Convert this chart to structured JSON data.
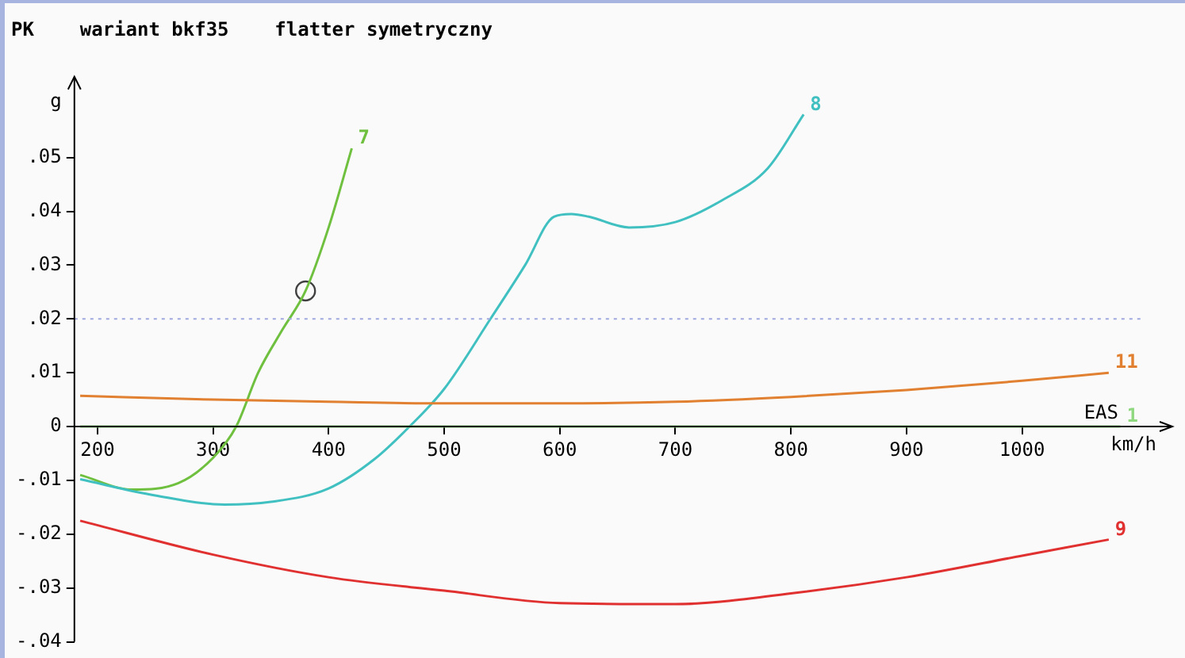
{
  "chart_data": {
    "type": "line",
    "title": "PK    wariant bkf35    flatter symetryczny",
    "xlabel": "EAS km/h",
    "ylabel": "g",
    "xlim": [
      180,
      1130
    ],
    "xticks": [
      200,
      300,
      400,
      500,
      600,
      700,
      800,
      900,
      1000
    ],
    "ylim": [
      -0.04,
      0.065
    ],
    "yticks": [
      {
        "value": -0.04,
        "label": "-.04"
      },
      {
        "value": -0.03,
        "label": "-.03"
      },
      {
        "value": -0.02,
        "label": "-.02"
      },
      {
        "value": -0.01,
        "label": "-.01"
      },
      {
        "value": 0,
        "label": "0"
      },
      {
        "value": 0.01,
        "label": ".01"
      },
      {
        "value": 0.02,
        "label": ".02"
      },
      {
        "value": 0.03,
        "label": ".03"
      },
      {
        "value": 0.04,
        "label": ".04"
      },
      {
        "value": 0.05,
        "label": ".05"
      }
    ],
    "grid": false,
    "legend": false,
    "marker": "none",
    "line_style": "solid",
    "ref_lines": [
      {
        "axis": "y",
        "value": 0.02,
        "color": "#a0a8e0",
        "line_style": "dotted"
      }
    ],
    "series": [
      {
        "name": "1",
        "color": "#90d880",
        "x": [
          185,
          1085
        ],
        "values": [
          0,
          0
        ]
      },
      {
        "name": "11",
        "color": "#e08030",
        "x": [
          185,
          300,
          400,
          500,
          600,
          700,
          800,
          900,
          1000,
          1075
        ],
        "values": [
          0.0057,
          0.005,
          0.0046,
          0.0043,
          0.0043,
          0.0046,
          0.0055,
          0.0068,
          0.0085,
          0.01
        ]
      },
      {
        "name": "9",
        "color": "#e03030",
        "x": [
          185,
          300,
          400,
          500,
          600,
          700,
          800,
          900,
          1000,
          1075
        ],
        "values": [
          -0.0175,
          -0.0238,
          -0.028,
          -0.0305,
          -0.0328,
          -0.033,
          -0.031,
          -0.028,
          -0.024,
          -0.021
        ]
      },
      {
        "name": "8",
        "color": "#40c0c0",
        "x": [
          185,
          250,
          310,
          350,
          400,
          440,
          470,
          500,
          540,
          570,
          595,
          610,
          625,
          660,
          700,
          740,
          780,
          811
        ],
        "values": [
          -0.0098,
          -0.0128,
          -0.0145,
          -0.014,
          -0.0115,
          -0.006,
          0,
          0.007,
          0.02,
          0.03,
          0.039,
          0.0395,
          0.039,
          0.037,
          0.038,
          0.042,
          0.048,
          0.058
        ]
      },
      {
        "name": "7",
        "color": "#70c040",
        "x": [
          185,
          230,
          270,
          300,
          320,
          339,
          360,
          380,
          400,
          420
        ],
        "values": [
          -0.009,
          -0.0117,
          -0.0105,
          -0.0058,
          0,
          0.01,
          0.018,
          0.0252,
          0.037,
          0.0517
        ]
      },
      {
        "type": "scatter",
        "color": "#404040",
        "marker": "circle",
        "x": [
          380
        ],
        "values": [
          0.0252
        ]
      }
    ]
  }
}
